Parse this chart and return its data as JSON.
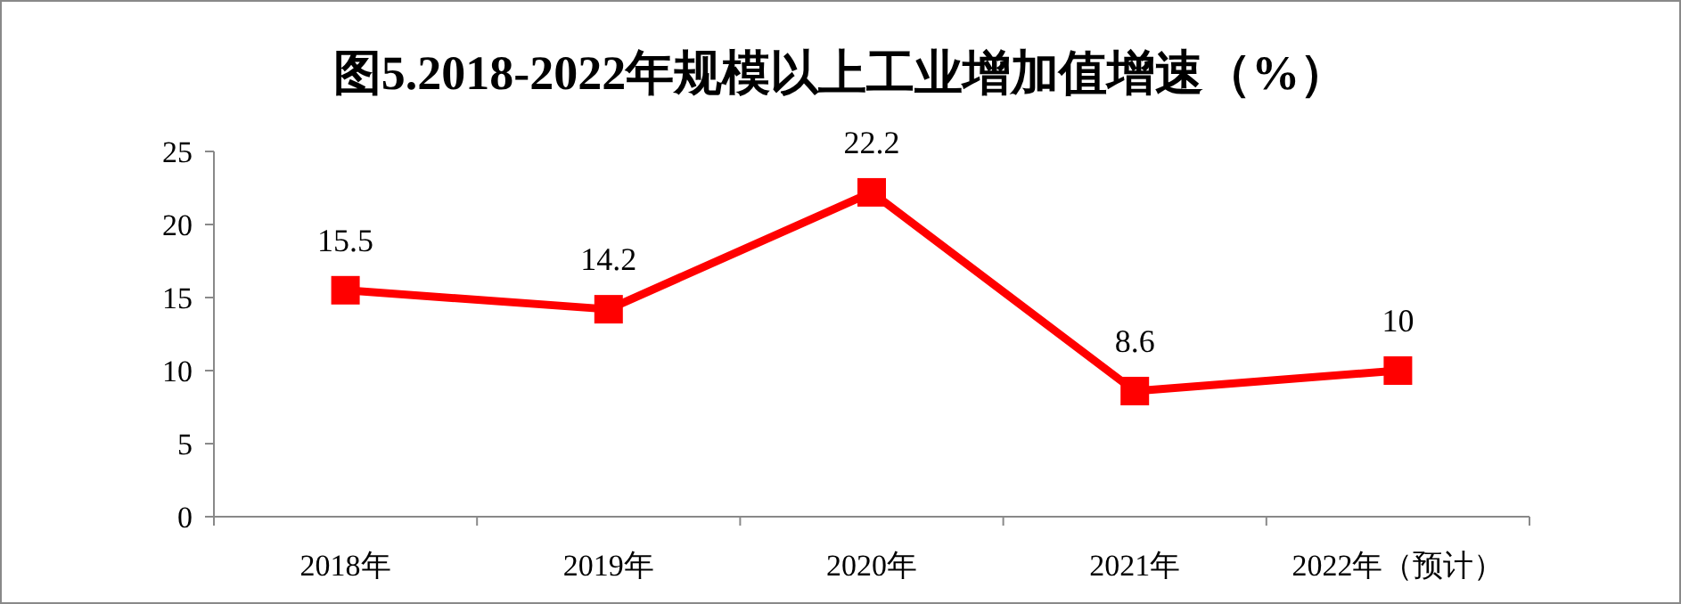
{
  "chart_data": {
    "type": "line",
    "title": "图5.2018-2022年规模以上工业增加值增速（%）",
    "categories": [
      "2018年",
      "2019年",
      "2020年",
      "2021年",
      "2022年（预计）"
    ],
    "values": [
      15.5,
      14.2,
      22.2,
      8.6,
      10
    ],
    "color": "#ff0000",
    "ylim": [
      0,
      25
    ],
    "yticks": [
      0,
      5,
      10,
      15,
      20,
      25
    ],
    "marker": "square",
    "line_style": "solid",
    "data_labels": true,
    "grid": false,
    "legend": false
  }
}
